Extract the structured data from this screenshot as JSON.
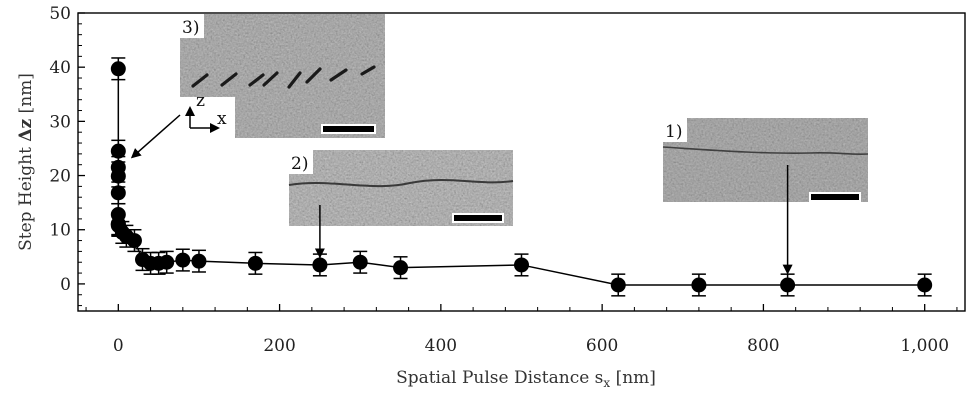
{
  "chart_data": {
    "type": "scatter",
    "xlabel": "Spatial Pulse Distance s",
    "xlabel_sub": "x",
    "xlabel_unit": " [nm]",
    "ylabel": "Step Height ",
    "ylabel_delta": "Δz",
    "ylabel_unit": " [nm]",
    "xlim": [
      -50,
      1050
    ],
    "ylim": [
      -5,
      50
    ],
    "xticks": [
      0,
      200,
      400,
      600,
      800,
      1000
    ],
    "xtick_labels": [
      "0",
      "200",
      "400",
      "600",
      "800",
      "1,000"
    ],
    "yticks": [
      0,
      10,
      20,
      30,
      40,
      50
    ],
    "ytick_labels": [
      "0",
      "10",
      "20",
      "30",
      "40",
      "50"
    ],
    "grid": false,
    "series": [
      {
        "x": [
          0,
          0,
          0,
          0,
          0,
          0,
          0,
          0,
          0,
          5,
          10,
          20,
          30,
          40,
          50,
          60,
          80,
          100,
          170,
          250,
          300,
          350,
          500,
          620,
          720,
          830,
          1000
        ],
        "y": [
          39.7,
          24.5,
          21.5,
          19.9,
          16.8,
          12.8,
          11.1,
          11.0,
          10.8,
          9.5,
          8.8,
          8.0,
          4.5,
          3.8,
          3.8,
          4.0,
          4.4,
          4.2,
          3.8,
          3.5,
          4.0,
          3.0,
          3.5,
          -0.2,
          -0.2,
          -0.2,
          -0.2
        ],
        "error": [
          2.0,
          2.0,
          2.0,
          2.0,
          2.0,
          2.0,
          2.0,
          2.0,
          2.0,
          2.0,
          2.0,
          2.0,
          2.0,
          2.0,
          2.0,
          2.0,
          2.0,
          2.0,
          2.0,
          2.0,
          2.0,
          2.0,
          2.0,
          2.0,
          2.0,
          2.0,
          2.0
        ]
      }
    ],
    "annotations": [
      {
        "label": "3)",
        "points_to_x": 10,
        "points_to_y": 26,
        "axes_x": "x",
        "axes_z": "z"
      },
      {
        "label": "2)",
        "points_to_x": 250,
        "points_to_y": 6
      },
      {
        "label": "1)",
        "points_to_x": 830,
        "points_to_y": 3
      }
    ]
  }
}
